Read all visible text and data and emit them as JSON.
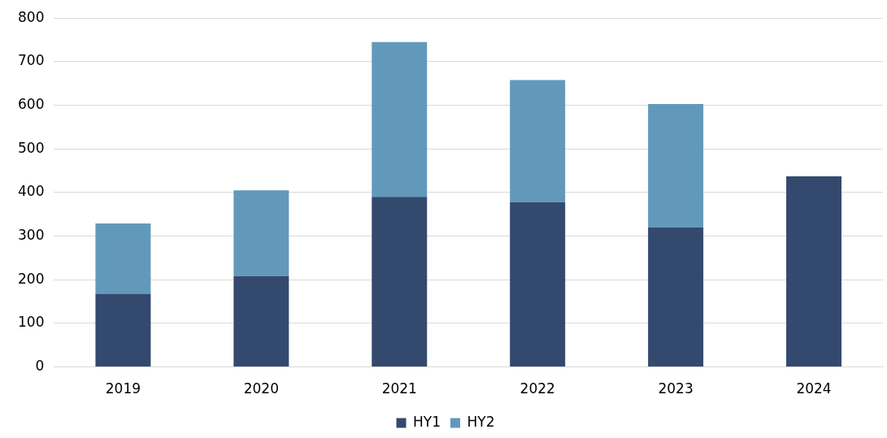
{
  "chart_data": {
    "type": "bar",
    "stacked": true,
    "categories": [
      "2019",
      "2020",
      "2021",
      "2022",
      "2023",
      "2024"
    ],
    "series": [
      {
        "name": "HY1",
        "color": "#34496e",
        "values": [
          168,
          208,
          390,
          378,
          320,
          437
        ]
      },
      {
        "name": "HY2",
        "color": "#6299bb",
        "values": [
          161,
          197,
          355,
          280,
          283,
          null
        ]
      }
    ],
    "ylim": [
      0,
      800
    ],
    "yticks": [
      0,
      100,
      200,
      300,
      400,
      500,
      600,
      700,
      800
    ],
    "grid": "y",
    "legend": "bottom"
  }
}
